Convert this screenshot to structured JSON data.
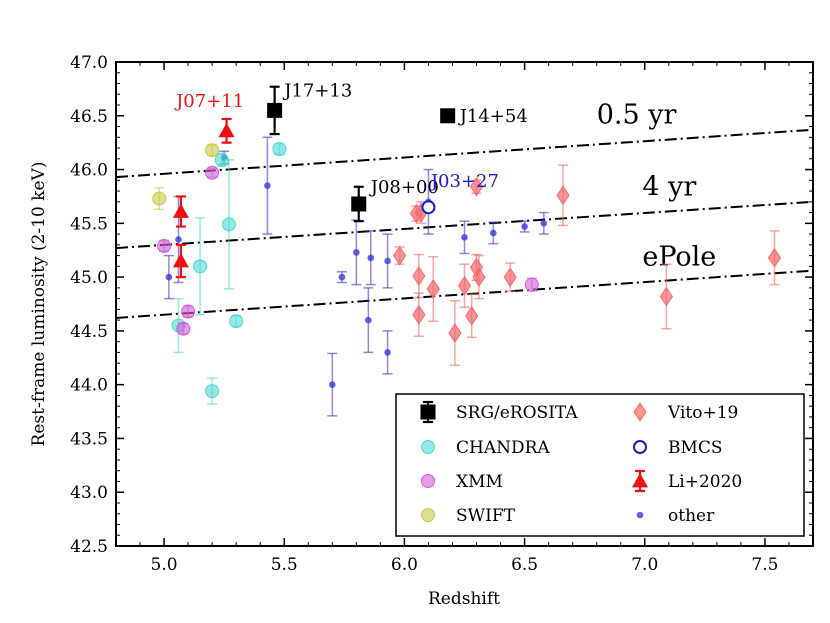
{
  "chart_data": {
    "type": "scatter",
    "xlabel": "Redshift",
    "ylabel": "Rest-frame luminosity (2-10 keV)",
    "xlim": [
      4.8,
      7.7
    ],
    "ylim": [
      42.5,
      47.0
    ],
    "xticks": [
      5.0,
      5.5,
      6.0,
      6.5,
      7.0,
      7.5
    ],
    "yticks": [
      42.5,
      43.0,
      43.5,
      44.0,
      44.5,
      45.0,
      45.5,
      46.0,
      46.5,
      47.0
    ],
    "xtick_labels": [
      "5.0",
      "5.5",
      "6.0",
      "6.5",
      "7.0",
      "7.5"
    ],
    "ytick_labels": [
      "42.5",
      "43.0",
      "43.5",
      "44.0",
      "44.5",
      "45.0",
      "45.5",
      "46.0",
      "46.5",
      "47.0"
    ],
    "lines": [
      {
        "name": "0.5 yr",
        "x": [
          4.8,
          7.7
        ],
        "y": [
          45.93,
          46.37
        ],
        "label_x": 6.8,
        "label_y": 46.43
      },
      {
        "name": "4 yr",
        "x": [
          4.8,
          7.7
        ],
        "y": [
          45.27,
          45.7
        ],
        "label_x": 6.99,
        "label_y": 45.76
      },
      {
        "name": "ePole",
        "x": [
          4.8,
          7.7
        ],
        "y": [
          44.62,
          45.06
        ],
        "label_x": 6.99,
        "label_y": 45.11
      }
    ],
    "series": [
      {
        "name": "other",
        "legend": "other",
        "marker": "smallcircle",
        "color": "#3b3bdc",
        "points": [
          {
            "x": 5.02,
            "y": 45.0,
            "err": 0.2
          },
          {
            "x": 5.06,
            "y": 45.35,
            "err": 0.4
          },
          {
            "x": 5.25,
            "y": 46.11,
            "err": 0.06
          },
          {
            "x": 5.43,
            "y": 45.85,
            "err": 0.45
          },
          {
            "x": 5.7,
            "y": 44.0,
            "err": 0.29
          },
          {
            "x": 5.74,
            "y": 45.0,
            "err": 0.05
          },
          {
            "x": 5.8,
            "y": 45.23,
            "err": 0.3
          },
          {
            "x": 5.85,
            "y": 44.6,
            "err": 0.3
          },
          {
            "x": 5.86,
            "y": 45.18,
            "err": 0.25
          },
          {
            "x": 5.93,
            "y": 44.3,
            "err": 0.2
          },
          {
            "x": 5.93,
            "y": 45.15,
            "err": 0.25
          },
          {
            "x": 6.1,
            "y": 45.7,
            "err": 0.3
          },
          {
            "x": 6.25,
            "y": 45.37,
            "err": 0.15
          },
          {
            "x": 6.37,
            "y": 45.41,
            "err": 0.1
          },
          {
            "x": 6.5,
            "y": 45.47,
            "err": 0.05
          },
          {
            "x": 6.58,
            "y": 45.5,
            "err": 0.1
          }
        ]
      },
      {
        "name": "CHANDRA",
        "legend": "CHANDRA",
        "marker": "circle",
        "color": "#4fd9d0",
        "points": [
          {
            "x": 5.06,
            "y": 44.55,
            "err": 0.25
          },
          {
            "x": 5.15,
            "y": 45.1,
            "err": 0.45
          },
          {
            "x": 5.2,
            "y": 43.94,
            "err": 0.12
          },
          {
            "x": 5.24,
            "y": 46.09,
            "err": 0.06
          },
          {
            "x": 5.27,
            "y": 45.49,
            "err": 0.6
          },
          {
            "x": 5.3,
            "y": 44.59,
            "err": 0.05
          },
          {
            "x": 5.48,
            "y": 46.19,
            "err": 0.05
          }
        ]
      },
      {
        "name": "XMM",
        "legend": "XMM",
        "marker": "circle",
        "color": "#d35cd9",
        "points": [
          {
            "x": 5.0,
            "y": 45.29,
            "err": 0.05
          },
          {
            "x": 5.08,
            "y": 44.52,
            "err": 0.05
          },
          {
            "x": 5.1,
            "y": 44.68,
            "err": 0.05
          },
          {
            "x": 5.2,
            "y": 45.97,
            "err": 0.04
          },
          {
            "x": 6.53,
            "y": 44.93,
            "err": 0.06
          }
        ]
      },
      {
        "name": "SWIFT",
        "legend": "SWIFT",
        "marker": "circle",
        "color": "#c8c84a",
        "points": [
          {
            "x": 4.98,
            "y": 45.73,
            "err": 0.1
          },
          {
            "x": 5.2,
            "y": 46.18,
            "err": 0.05
          }
        ]
      },
      {
        "name": "Vito+19",
        "legend": "Vito+19",
        "marker": "diamond",
        "color": "#f26a6a",
        "points": [
          {
            "x": 5.98,
            "y": 45.2,
            "err": 0.08
          },
          {
            "x": 6.05,
            "y": 45.59,
            "err": 0.07
          },
          {
            "x": 6.06,
            "y": 45.01,
            "err": 0.2
          },
          {
            "x": 6.06,
            "y": 44.65,
            "err": 0.2
          },
          {
            "x": 6.07,
            "y": 45.6,
            "err": 0.1
          },
          {
            "x": 6.12,
            "y": 44.89,
            "err": 0.3
          },
          {
            "x": 6.21,
            "y": 44.48,
            "err": 0.3
          },
          {
            "x": 6.25,
            "y": 44.92,
            "err": 0.2
          },
          {
            "x": 6.28,
            "y": 44.64,
            "err": 0.2
          },
          {
            "x": 6.3,
            "y": 45.09,
            "err": 0.12
          },
          {
            "x": 6.3,
            "y": 45.84,
            "err": 0.06
          },
          {
            "x": 6.31,
            "y": 45.0,
            "err": 0.2
          },
          {
            "x": 6.44,
            "y": 45.0,
            "err": 0.13
          },
          {
            "x": 6.66,
            "y": 45.76,
            "err": 0.28
          },
          {
            "x": 7.09,
            "y": 44.82,
            "err": 0.3
          },
          {
            "x": 7.54,
            "y": 45.18,
            "err": 0.25
          }
        ]
      },
      {
        "name": "BMCS",
        "legend": "BMCS",
        "marker": "opencircle",
        "color": "#1a1ad6",
        "points": [
          {
            "x": 6.1,
            "y": 45.65,
            "err": 0
          }
        ]
      },
      {
        "name": "Li+2020",
        "legend": "Li+2020",
        "marker": "triangle",
        "color": "#ee1111",
        "points": [
          {
            "x": 5.07,
            "y": 45.61,
            "err": 0.14
          },
          {
            "x": 5.07,
            "y": 45.15,
            "err": 0.15
          },
          {
            "x": 5.26,
            "y": 46.36,
            "err": 0.11
          }
        ]
      },
      {
        "name": "SRG/eROSITA",
        "legend": "SRG/eROSITA",
        "marker": "square",
        "color": "#000000",
        "points": [
          {
            "x": 5.46,
            "y": 46.55,
            "err": 0.22
          },
          {
            "x": 5.81,
            "y": 45.68,
            "err": 0.16
          },
          {
            "x": 6.18,
            "y": 46.5,
            "err": 0.03
          }
        ]
      }
    ],
    "annotations": [
      {
        "text": "J17+13",
        "x": 5.5,
        "y": 46.68,
        "color": "#000000"
      },
      {
        "text": "J08+00",
        "x": 5.86,
        "y": 45.78,
        "color": "#000000"
      },
      {
        "text": "J14+54",
        "x": 6.23,
        "y": 46.44,
        "color": "#000000"
      },
      {
        "text": "J07+11",
        "x": 5.05,
        "y": 46.58,
        "color": "#ee1111"
      },
      {
        "text": "J03+27",
        "x": 6.11,
        "y": 45.84,
        "color": "#1a1ad6"
      }
    ],
    "legend": {
      "position": "lower-right",
      "columns": [
        [
          "SRG/eROSITA",
          "CHANDRA",
          "XMM",
          "SWIFT"
        ],
        [
          "Vito+19",
          "BMCS",
          "Li+2020",
          "other"
        ]
      ]
    }
  }
}
